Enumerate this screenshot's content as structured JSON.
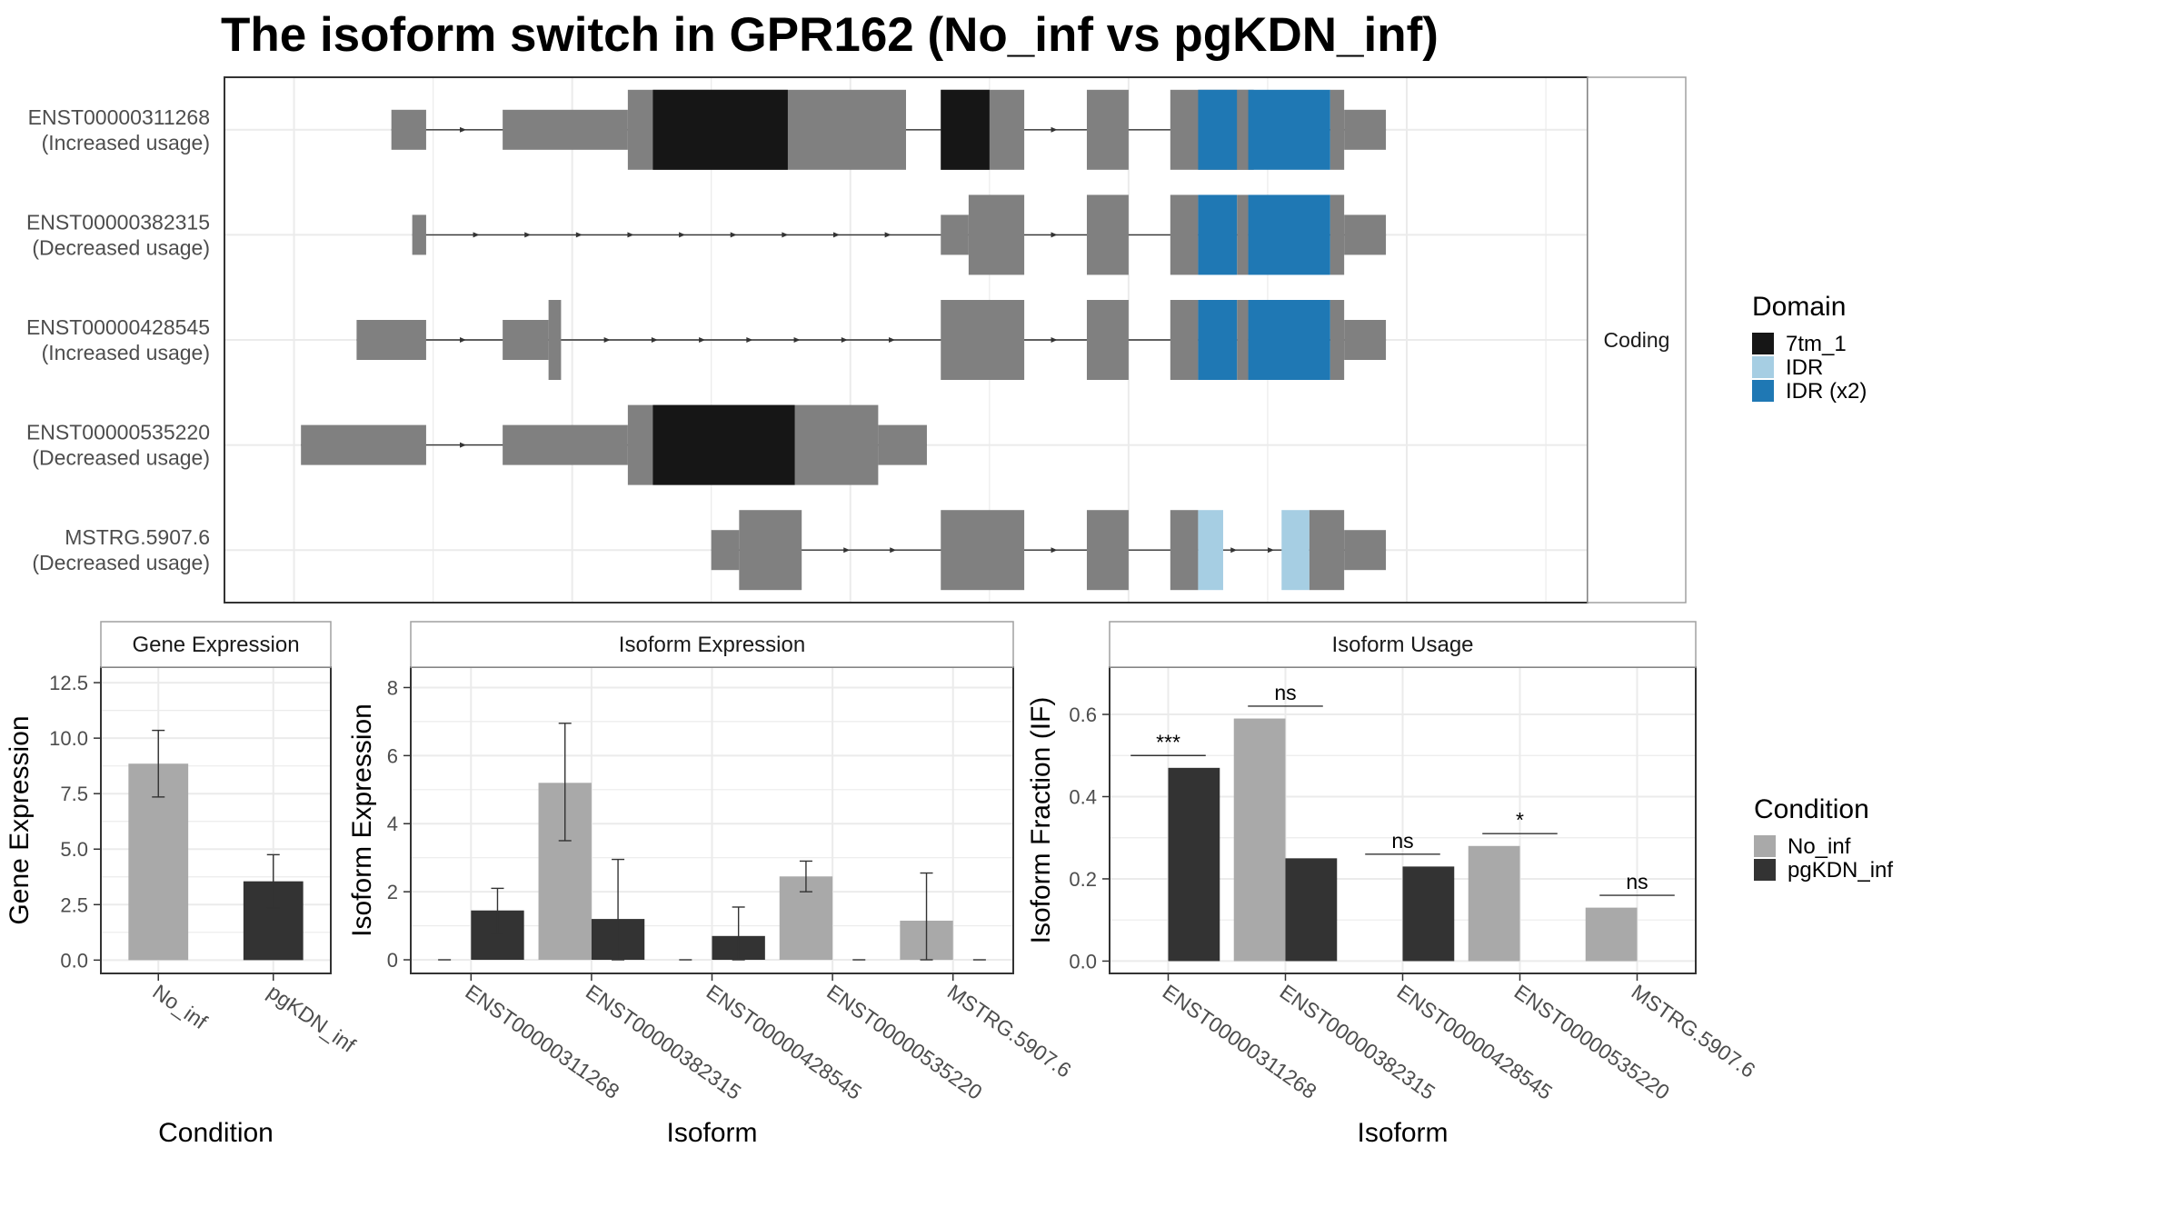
{
  "title": "The isoform switch in GPR162 (No_inf vs pgKDN_inf)",
  "colors": {
    "exon": "#808080",
    "domain_7tm_1": "#161616",
    "domain_idr": "#a6cee3",
    "domain_idr_x2": "#1f78b4",
    "no_inf": "#a9a9a9",
    "pgkdn_inf": "#333333",
    "grid": "#ebebeb",
    "panel_border": "#333333",
    "strip_border": "#a0a0a0"
  },
  "chart_data": [
    {
      "type": "gene-structure",
      "panel": "transcript-structure",
      "facet_label": "Coding",
      "transcripts": [
        {
          "id": "ENST00000311268",
          "usage": "(Increased usage)",
          "features": [
            {
              "kind": "exon",
              "start": 1.2,
              "end": 1.45
            },
            {
              "kind": "exon",
              "start": 2.0,
              "end": 2.9
            },
            {
              "kind": "cds",
              "start": 2.9,
              "end": 4.9
            },
            {
              "kind": "7tm_1",
              "start": 3.08,
              "end": 4.05
            },
            {
              "kind": "cds",
              "start": 5.15,
              "end": 5.75
            },
            {
              "kind": "7tm_1",
              "start": 5.15,
              "end": 5.5
            },
            {
              "kind": "cds",
              "start": 6.2,
              "end": 6.5
            },
            {
              "kind": "cds",
              "start": 6.8,
              "end": 7.4
            },
            {
              "kind": "IDR (x2)",
              "start": 7.0,
              "end": 7.28
            },
            {
              "kind": "IDR (x2)",
              "start": 7.36,
              "end": 7.95
            },
            {
              "kind": "cds",
              "start": 7.28,
              "end": 7.36
            },
            {
              "kind": "cds",
              "start": 7.95,
              "end": 8.05
            },
            {
              "kind": "exon",
              "start": 8.05,
              "end": 8.35
            }
          ]
        },
        {
          "id": "ENST00000382315",
          "usage": "(Decreased usage)",
          "features": [
            {
              "kind": "exon",
              "start": 1.35,
              "end": 1.45
            },
            {
              "kind": "exon",
              "start": 5.15,
              "end": 5.35
            },
            {
              "kind": "cds",
              "start": 5.35,
              "end": 5.75
            },
            {
              "kind": "cds",
              "start": 6.2,
              "end": 6.5
            },
            {
              "kind": "cds",
              "start": 6.8,
              "end": 7.0
            },
            {
              "kind": "IDR (x2)",
              "start": 7.0,
              "end": 7.28
            },
            {
              "kind": "cds",
              "start": 7.28,
              "end": 7.36
            },
            {
              "kind": "IDR (x2)",
              "start": 7.36,
              "end": 7.95
            },
            {
              "kind": "cds",
              "start": 7.95,
              "end": 8.05
            },
            {
              "kind": "exon",
              "start": 8.05,
              "end": 8.35
            }
          ]
        },
        {
          "id": "ENST00000428545",
          "usage": "(Increased usage)",
          "features": [
            {
              "kind": "exon",
              "start": 0.95,
              "end": 1.45
            },
            {
              "kind": "exon",
              "start": 2.0,
              "end": 2.33
            },
            {
              "kind": "cds",
              "start": 2.33,
              "end": 2.42
            },
            {
              "kind": "cds",
              "start": 5.15,
              "end": 5.75
            },
            {
              "kind": "cds",
              "start": 6.2,
              "end": 6.5
            },
            {
              "kind": "cds",
              "start": 6.8,
              "end": 7.0
            },
            {
              "kind": "IDR (x2)",
              "start": 7.0,
              "end": 7.28
            },
            {
              "kind": "cds",
              "start": 7.28,
              "end": 7.36
            },
            {
              "kind": "IDR (x2)",
              "start": 7.36,
              "end": 7.95
            },
            {
              "kind": "cds",
              "start": 7.95,
              "end": 8.05
            },
            {
              "kind": "exon",
              "start": 8.05,
              "end": 8.35
            }
          ]
        },
        {
          "id": "ENST00000535220",
          "usage": "(Decreased usage)",
          "features": [
            {
              "kind": "exon",
              "start": 0.55,
              "end": 1.45
            },
            {
              "kind": "exon",
              "start": 2.0,
              "end": 2.9
            },
            {
              "kind": "cds",
              "start": 2.9,
              "end": 4.7
            },
            {
              "kind": "7tm_1",
              "start": 3.08,
              "end": 4.1
            },
            {
              "kind": "exon",
              "start": 4.7,
              "end": 5.05
            }
          ]
        },
        {
          "id": "MSTRG.5907.6",
          "usage": "(Decreased usage)",
          "features": [
            {
              "kind": "exon",
              "start": 3.5,
              "end": 3.7
            },
            {
              "kind": "cds",
              "start": 3.7,
              "end": 4.15
            },
            {
              "kind": "cds",
              "start": 5.15,
              "end": 5.75
            },
            {
              "kind": "cds",
              "start": 6.2,
              "end": 6.5
            },
            {
              "kind": "cds",
              "start": 6.8,
              "end": 7.0
            },
            {
              "kind": "IDR",
              "start": 7.0,
              "end": 7.18
            },
            {
              "kind": "IDR",
              "start": 7.6,
              "end": 7.8
            },
            {
              "kind": "cds",
              "start": 7.8,
              "end": 8.05
            },
            {
              "kind": "exon",
              "start": 8.05,
              "end": 8.35
            }
          ]
        }
      ],
      "legend": {
        "title": "Domain",
        "entries": [
          {
            "label": "7tm_1",
            "color": "#161616"
          },
          {
            "label": "IDR",
            "color": "#a6cee3"
          },
          {
            "label": "IDR (x2)",
            "color": "#1f78b4"
          }
        ]
      }
    },
    {
      "type": "bar",
      "panel": "gene-expression",
      "strip": "Gene Expression",
      "xlabel": "Condition",
      "ylabel": "Gene Expression",
      "ylim": [
        -0.6,
        13.2
      ],
      "yticks": [
        0.0,
        2.5,
        5.0,
        7.5,
        10.0,
        12.5
      ],
      "ytick_labels": [
        "0.0",
        "2.5",
        "5.0",
        "7.5",
        "10.0",
        "12.5"
      ],
      "categories": [
        "No_inf",
        "pgKDN_inf"
      ],
      "values": [
        8.85,
        3.55
      ],
      "error_low": [
        7.35,
        2.35
      ],
      "error_high": [
        10.35,
        4.75
      ]
    },
    {
      "type": "bar",
      "panel": "isoform-expression",
      "strip": "Isoform Expression",
      "xlabel": "Isoform",
      "ylabel": "Isoform Expression",
      "ylim": [
        -0.4,
        8.6
      ],
      "yticks": [
        0,
        2,
        4,
        6,
        8
      ],
      "ytick_labels": [
        "0",
        "2",
        "4",
        "6",
        "8"
      ],
      "categories": [
        "ENST00000311268",
        "ENST00000382315",
        "ENST00000428545",
        "ENST00000535220",
        "MSTRG.5907.6"
      ],
      "series": [
        {
          "name": "No_inf",
          "values": [
            0,
            5.2,
            0,
            2.45,
            1.15
          ],
          "error_low": [
            0,
            3.5,
            0,
            2.0,
            0
          ],
          "error_high": [
            0,
            6.95,
            0,
            2.9,
            2.55
          ]
        },
        {
          "name": "pgKDN_inf",
          "values": [
            1.45,
            1.2,
            0.7,
            0,
            0
          ],
          "error_low": [
            0.75,
            0,
            0,
            0,
            0
          ],
          "error_high": [
            2.1,
            2.95,
            1.55,
            0,
            0
          ]
        }
      ]
    },
    {
      "type": "bar",
      "panel": "isoform-usage",
      "strip": "Isoform Usage",
      "xlabel": "Isoform",
      "ylabel": "Isoform Fraction (IF)",
      "ylim": [
        -0.03,
        0.715
      ],
      "yticks": [
        0.0,
        0.2,
        0.4,
        0.6
      ],
      "ytick_labels": [
        "0.0",
        "0.2",
        "0.4",
        "0.6"
      ],
      "categories": [
        "ENST00000311268",
        "ENST00000382315",
        "ENST00000428545",
        "ENST00000535220",
        "MSTRG.5907.6"
      ],
      "series": [
        {
          "name": "No_inf",
          "values": [
            0,
            0.59,
            0,
            0.28,
            0.13
          ]
        },
        {
          "name": "pgKDN_inf",
          "values": [
            0.47,
            0.25,
            0.23,
            0,
            0
          ]
        }
      ],
      "significance": [
        {
          "label": "***",
          "y": 0.5
        },
        {
          "label": "ns",
          "y": 0.62
        },
        {
          "label": "ns",
          "y": 0.26
        },
        {
          "label": "*",
          "y": 0.31
        },
        {
          "label": "ns",
          "y": 0.16
        }
      ]
    }
  ],
  "condition_legend": {
    "title": "Condition",
    "entries": [
      {
        "label": "No_inf",
        "color": "#a9a9a9"
      },
      {
        "label": "pgKDN_inf",
        "color": "#333333"
      }
    ]
  }
}
